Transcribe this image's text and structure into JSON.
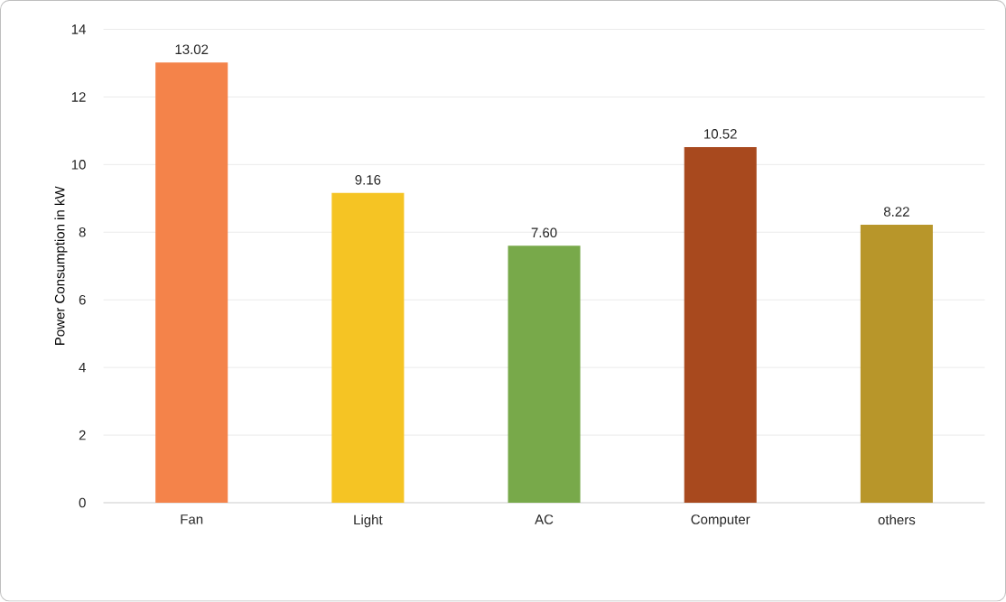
{
  "chart_data": {
    "type": "bar",
    "ylabel": "Power Consumption in kW",
    "categories": [
      "Fan",
      "Light",
      "AC",
      "Computer",
      "others"
    ],
    "values": [
      13.02,
      9.16,
      7.6,
      10.52,
      8.22
    ],
    "value_labels": [
      "13.02",
      "9.16",
      "7.60",
      "10.52",
      "8.22"
    ],
    "colors": [
      "#f4834a",
      "#f5c424",
      "#78a94a",
      "#a8491e",
      "#b8962a"
    ],
    "ylim": [
      0,
      14
    ],
    "yticks": [
      0,
      2,
      4,
      6,
      8,
      10,
      12,
      14
    ],
    "grid": "y"
  }
}
